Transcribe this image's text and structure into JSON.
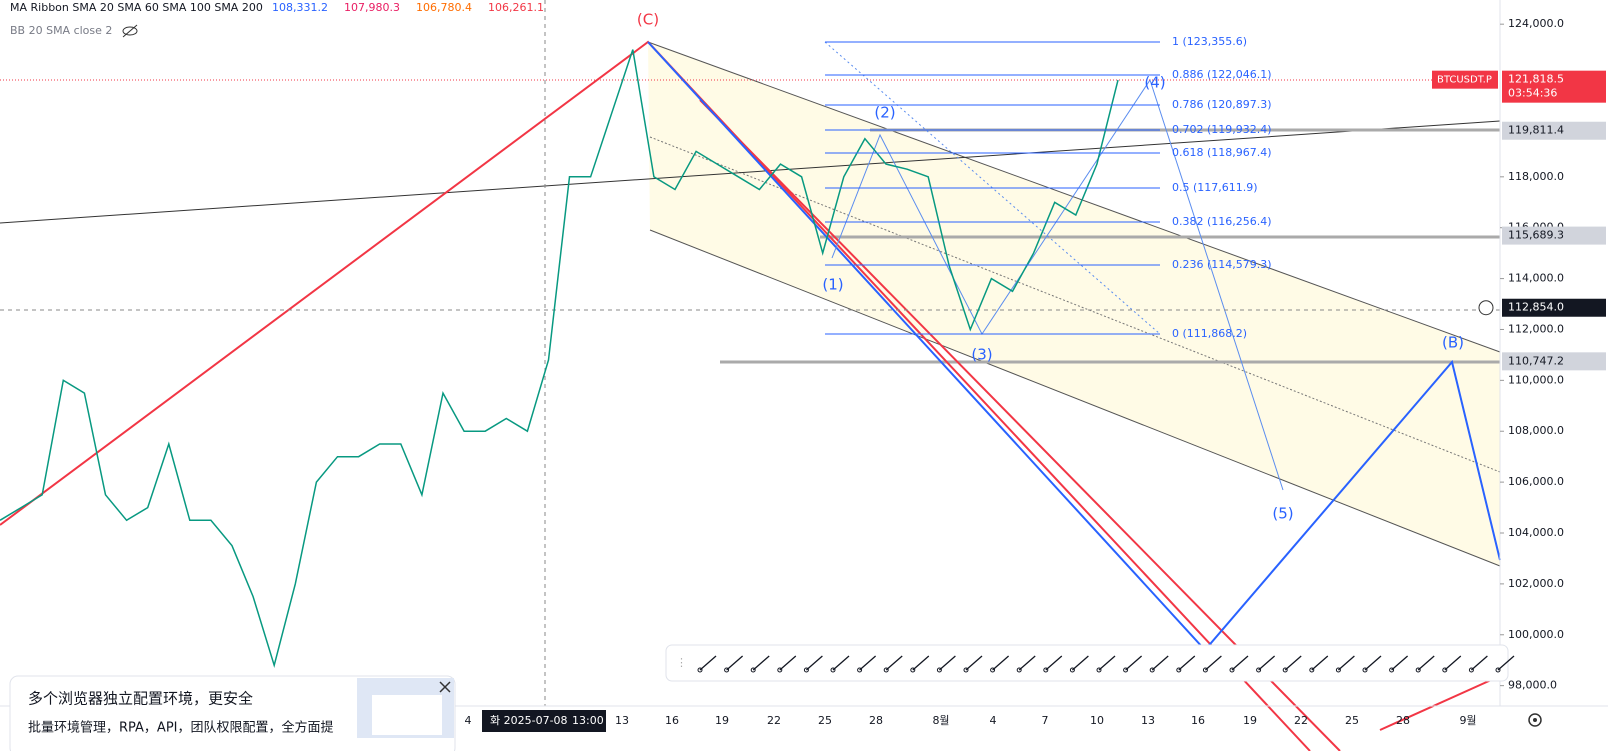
{
  "legend": {
    "ma_ribbon": "MA Ribbon SMA 20 SMA 60 SMA 100 SMA 200",
    "ma_values": [
      "108,331.2",
      "107,980.3",
      "106,780.4",
      "106,261.1"
    ],
    "bb": "BB 20 SMA close 2"
  },
  "price_axis": {
    "ylim": [
      97200,
      124950
    ],
    "ticks": [
      {
        "value": 124000,
        "label": "124,000.0"
      },
      {
        "value": 118000,
        "label": "118,000.0"
      },
      {
        "value": 116000,
        "label": "116,000.0"
      },
      {
        "value": 114000,
        "label": "114,000.0"
      },
      {
        "value": 112000,
        "label": "112,000.0"
      },
      {
        "value": 110000,
        "label": "110,000.0"
      },
      {
        "value": 108000,
        "label": "108,000.0"
      },
      {
        "value": 106000,
        "label": "106,000.0"
      },
      {
        "value": 104000,
        "label": "104,000.0"
      },
      {
        "value": 102000,
        "label": "102,000.0"
      },
      {
        "value": 100000,
        "label": "100,000.0"
      },
      {
        "value": 98000,
        "label": "98,000.0"
      }
    ],
    "symbol_tag": {
      "symbol": "BTCUSDT.P",
      "price": {
        "value": 121818.5,
        "label": "121,818.5"
      },
      "countdown": "03:54:36"
    },
    "level_tags": [
      {
        "value": 119811.4,
        "label": "119,811.4"
      },
      {
        "value": 115689.3,
        "label": "115,689.3"
      },
      {
        "value": 110747.2,
        "label": "110,747.2"
      }
    ],
    "crosshair_tag": {
      "value": 112854.0,
      "label": "112,854.0"
    }
  },
  "price_series": {
    "values": [
      104500,
      105000,
      105500,
      110000,
      109500,
      105500,
      104500,
      105000,
      107500,
      104500,
      104500,
      103500,
      101500,
      98800,
      102000,
      106000,
      107000,
      107000,
      107500,
      107500,
      105500,
      109500,
      108000,
      108000,
      108500,
      108000,
      110800,
      118000,
      118000,
      120500,
      123000,
      118000,
      117500,
      119000,
      118500,
      118000,
      117500,
      118500,
      118000,
      115000,
      118000,
      119500,
      118500,
      118300,
      118000,
      114500,
      112000,
      114000,
      113500,
      115000,
      117000,
      116500,
      118500,
      121800
    ]
  },
  "fib_levels": [
    "1 (123,355.6)",
    "0.886 (122,046.1)",
    "0.786 (120,897.3)",
    "0.702 (119,932.4)",
    "0.618 (118,967.4)",
    "0.5 (117,611.9)",
    "0.382 (116,256.4)",
    "0.236 (114,579.3)",
    "0 (111,868.2)"
  ],
  "wave_labels": [
    "(C)",
    "(1)",
    "(2)",
    "(3)",
    "(4)",
    "(5)",
    "(B)"
  ],
  "time_axis": {
    "labels": [
      "4",
      "13",
      "16",
      "19",
      "22",
      "25",
      "28",
      "8월",
      "4",
      "7",
      "10",
      "13",
      "16",
      "19",
      "22",
      "25",
      "28",
      "9월"
    ],
    "crosshair_date": "화 2025-07-08",
    "crosshair_time": "13:00"
  },
  "ad": {
    "title": "多个浏览器独立配置环境，更安全",
    "body": "批量环境管理，RPA，API，团队权限配置，全方面提"
  }
}
